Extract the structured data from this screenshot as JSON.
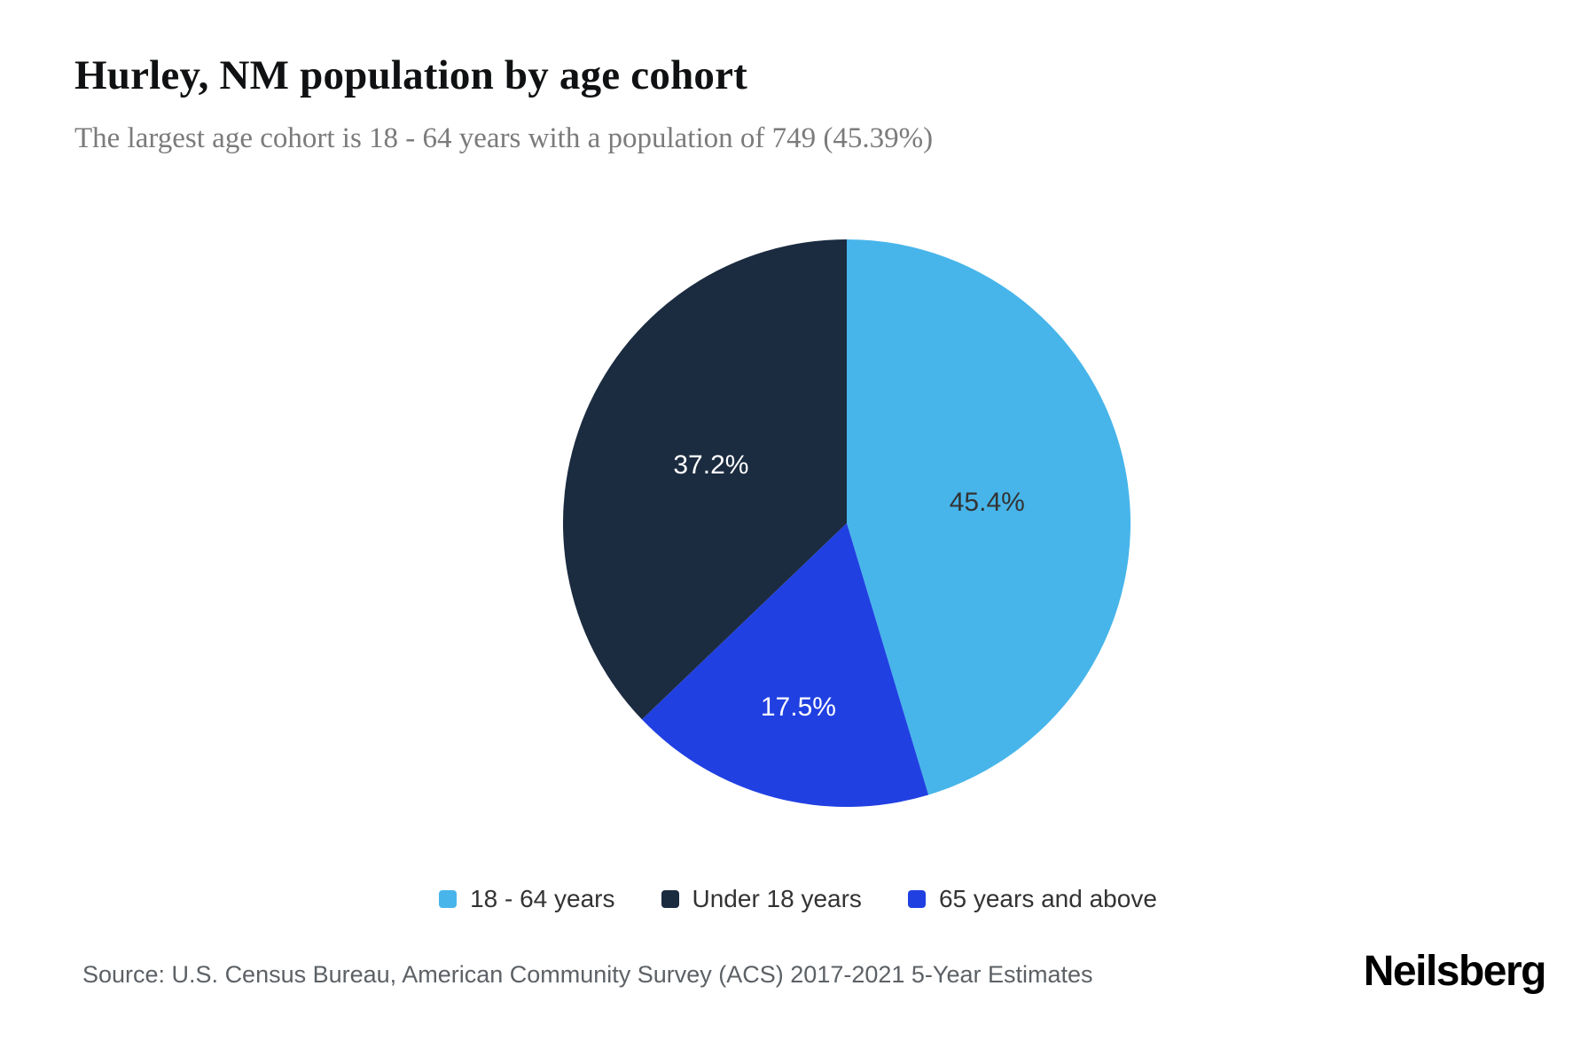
{
  "chart_data": {
    "type": "pie",
    "title": "Hurley, NM population by age cohort",
    "subtitle": "The largest age cohort is 18 - 64 years with a population of 749 (45.39%)",
    "legend_position": "bottom",
    "start_angle_deg": 0,
    "direction": "clockwise",
    "series": [
      {
        "label": "18 - 64 years",
        "value": 45.4,
        "display": "45.4%",
        "color": "#47B5EA",
        "label_color": "#333333",
        "label_radius": 0.5
      },
      {
        "label": "Under 18 years",
        "value": 37.2,
        "display": "37.2%",
        "color": "#1B2B40",
        "label_color": "#FFFFFF",
        "label_radius": 0.52
      },
      {
        "label": "65 years and above",
        "value": 17.5,
        "display": "17.5%",
        "color": "#2040E2",
        "label_color": "#FFFFFF",
        "label_radius": 0.67
      }
    ],
    "clockwise_order": [
      0,
      2,
      1
    ]
  },
  "footer": {
    "source": "Source: U.S. Census Bureau, American Community Survey (ACS) 2017-2021 5-Year Estimates",
    "brand": "Neilsberg"
  }
}
